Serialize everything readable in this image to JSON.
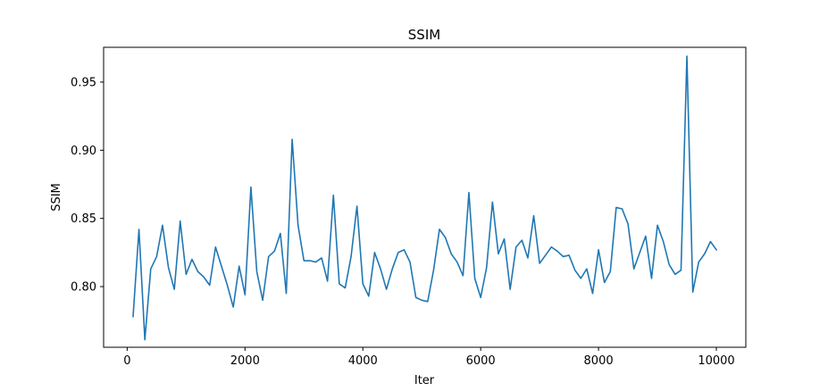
{
  "chart_data": {
    "type": "line",
    "title": "SSIM",
    "xlabel": "Iter",
    "ylabel": "SSIM",
    "xlim": [
      -400,
      10500
    ],
    "ylim": [
      0.7555,
      0.9755
    ],
    "xticks": [
      0,
      2000,
      4000,
      6000,
      8000,
      10000
    ],
    "xtick_labels": [
      "0",
      "2000",
      "4000",
      "6000",
      "8000",
      "10000"
    ],
    "yticks": [
      0.8,
      0.85,
      0.9,
      0.95
    ],
    "ytick_labels": [
      "0.80",
      "0.85",
      "0.90",
      "0.95"
    ],
    "grid": false,
    "color": "#1f77b4",
    "series": [
      {
        "x": [
          100,
          200,
          300,
          400,
          500,
          600,
          700,
          800,
          900,
          1000,
          1100,
          1200,
          1300,
          1400,
          1500,
          1600,
          1700,
          1800,
          1900,
          2000,
          2100,
          2200,
          2300,
          2400,
          2500,
          2600,
          2700,
          2800,
          2900,
          3000,
          3100,
          3200,
          3300,
          3400,
          3500,
          3600,
          3700,
          3800,
          3900,
          4000,
          4100,
          4200,
          4300,
          4400,
          4500,
          4600,
          4700,
          4800,
          4900,
          5000,
          5100,
          5200,
          5300,
          5400,
          5500,
          5600,
          5700,
          5800,
          5900,
          6000,
          6100,
          6200,
          6300,
          6400,
          6500,
          6600,
          6700,
          6800,
          6900,
          7000,
          7100,
          7200,
          7300,
          7400,
          7500,
          7600,
          7700,
          7800,
          7900,
          8000,
          8100,
          8200,
          8300,
          8400,
          8500,
          8600,
          8700,
          8800,
          8900,
          9000,
          9100,
          9200,
          9300,
          9400,
          9500,
          9600,
          9700,
          9800,
          9900,
          10000
        ],
        "values": [
          0.778,
          0.842,
          0.761,
          0.813,
          0.822,
          0.845,
          0.814,
          0.798,
          0.848,
          0.809,
          0.82,
          0.811,
          0.807,
          0.801,
          0.829,
          0.815,
          0.801,
          0.785,
          0.815,
          0.794,
          0.873,
          0.811,
          0.79,
          0.822,
          0.826,
          0.839,
          0.795,
          0.908,
          0.845,
          0.819,
          0.819,
          0.818,
          0.821,
          0.804,
          0.867,
          0.802,
          0.799,
          0.822,
          0.859,
          0.802,
          0.793,
          0.825,
          0.813,
          0.798,
          0.813,
          0.825,
          0.827,
          0.818,
          0.792,
          0.79,
          0.789,
          0.812,
          0.842,
          0.836,
          0.824,
          0.818,
          0.808,
          0.869,
          0.806,
          0.792,
          0.814,
          0.862,
          0.824,
          0.835,
          0.798,
          0.829,
          0.834,
          0.821,
          0.852,
          0.817,
          0.823,
          0.829,
          0.826,
          0.822,
          0.823,
          0.812,
          0.806,
          0.813,
          0.795,
          0.827,
          0.803,
          0.811,
          0.858,
          0.857,
          0.846,
          0.813,
          0.825,
          0.837,
          0.806,
          0.845,
          0.833,
          0.816,
          0.809,
          0.812,
          0.969,
          0.796,
          0.818,
          0.824,
          0.833,
          0.827
        ]
      }
    ]
  }
}
